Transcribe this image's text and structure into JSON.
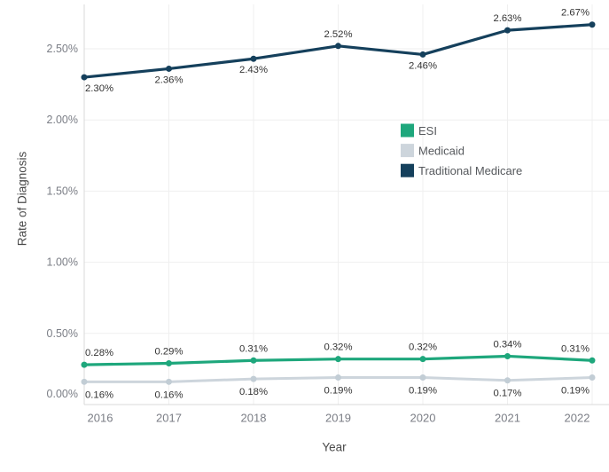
{
  "chart": {
    "background": "#ffffff",
    "gridline_color": "#efefef",
    "axis_line_color": "#d9d9d9",
    "tick_label_color": "#7b7e86",
    "data_label_color": "#333333",
    "axis_title_color": "#4a4a4a",
    "legend_text_color": "#56595d"
  },
  "chart_data": {
    "type": "line",
    "title": "",
    "xlabel": "Year",
    "ylabel": "Rate of Diagnosis",
    "x": [
      2016,
      2017,
      2018,
      2019,
      2020,
      2021,
      2022
    ],
    "x_labels": [
      "2016",
      "2017",
      "2018",
      "2019",
      "2020",
      "2021",
      "2022"
    ],
    "y_ticks": [
      "0.00%",
      "0.50%",
      "1.00%",
      "1.50%",
      "2.00%",
      "2.50%"
    ],
    "y_tick_values": [
      0,
      0.5,
      1.0,
      1.5,
      2.0,
      2.5
    ],
    "ylim": [
      0,
      2.8
    ],
    "grid": true,
    "legend": {
      "position": "middle-right",
      "entries": [
        "ESI",
        "Medicaid",
        "Traditional Medicare"
      ]
    },
    "series": [
      {
        "name": "ESI",
        "color": "#1EA77C",
        "marker_color": "#1EA77C",
        "line_width": 3.2,
        "values": [
          0.28,
          0.29,
          0.31,
          0.32,
          0.32,
          0.34,
          0.31
        ],
        "labels": [
          "0.28%",
          "0.29%",
          "0.31%",
          "0.32%",
          "0.32%",
          "0.34%",
          "0.31%"
        ],
        "label_positions": [
          "above",
          "above",
          "above",
          "above",
          "above",
          "above",
          "above"
        ],
        "label_dy": 13
      },
      {
        "name": "Medicaid",
        "color": "#CDD5DC",
        "marker_color": "#C2CDD5",
        "line_width": 3.0,
        "values": [
          0.16,
          0.16,
          0.18,
          0.19,
          0.19,
          0.17,
          0.19
        ],
        "labels": [
          "0.16%",
          "0.16%",
          "0.18%",
          "0.19%",
          "0.19%",
          "0.17%",
          "0.19%"
        ],
        "label_positions": [
          "below",
          "below",
          "below",
          "below",
          "below",
          "below",
          "below"
        ],
        "label_dy": 15
      },
      {
        "name": "Traditional Medicare",
        "color": "#15405C",
        "marker_color": "#15405C",
        "line_width": 3.2,
        "values": [
          2.3,
          2.36,
          2.43,
          2.52,
          2.46,
          2.63,
          2.67
        ],
        "labels": [
          "2.30%",
          "2.36%",
          "2.43%",
          "2.52%",
          "2.46%",
          "2.63%",
          "2.67%"
        ],
        "label_positions": [
          "below",
          "below",
          "below",
          "above",
          "below",
          "above",
          "above"
        ],
        "label_dy": 13
      }
    ]
  }
}
